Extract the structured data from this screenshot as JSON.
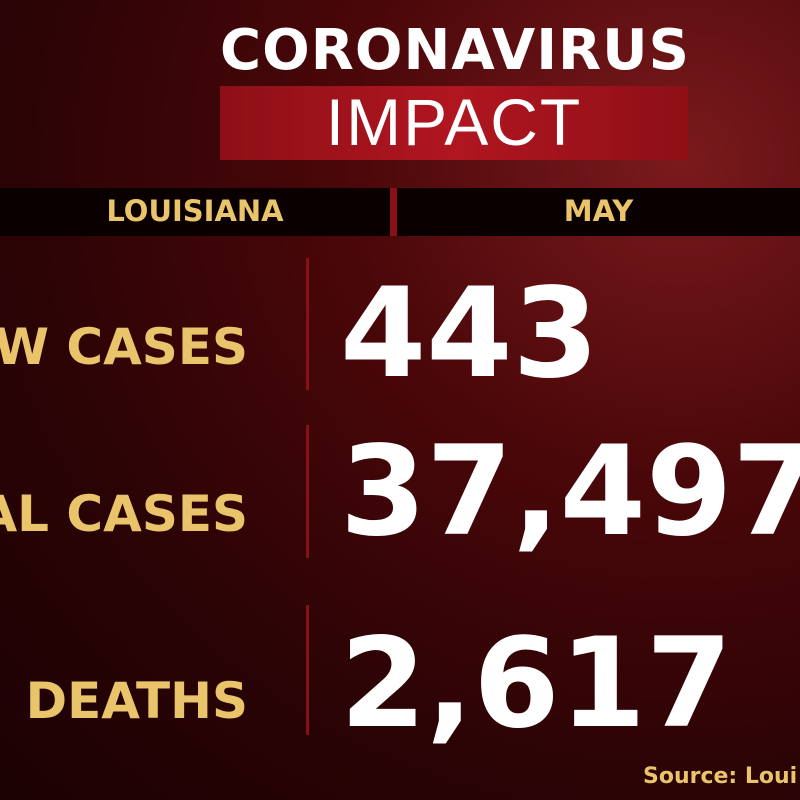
{
  "header": {
    "title": "CORONAVIRUS",
    "subtitle": "IMPACT"
  },
  "bar": {
    "region": "LOUISIANA",
    "period": "MAY"
  },
  "rows": [
    {
      "label": "W CASES",
      "value": "443"
    },
    {
      "label": "AL CASES",
      "value": "37,497"
    },
    {
      "label": "DEATHS",
      "value": "2,617"
    }
  ],
  "footer": {
    "source": "Source: Loui"
  }
}
